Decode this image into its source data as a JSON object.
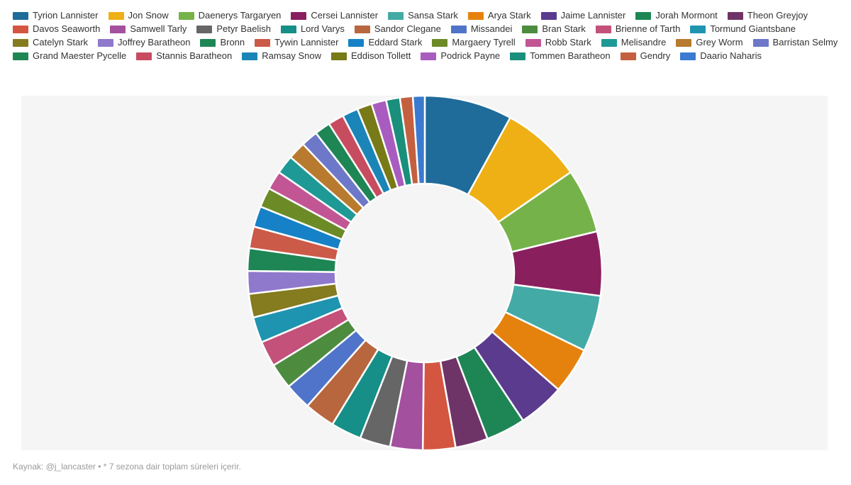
{
  "footnote": "Kaynak: @j_lancaster • * 7 sezona dair toplam süreleri içerir.",
  "chart_data": {
    "type": "pie",
    "donut": true,
    "legend_position": "top",
    "categories": [
      "Tyrion Lannister",
      "Jon Snow",
      "Daenerys Targaryen",
      "Cersei Lannister",
      "Sansa Stark",
      "Arya Stark",
      "Jaime Lannister",
      "Jorah Mormont",
      "Theon Greyjoy",
      "Davos Seaworth",
      "Samwell Tarly",
      "Petyr Baelish",
      "Lord Varys",
      "Sandor Clegane",
      "Missandei",
      "Bran Stark",
      "Brienne of Tarth",
      "Tormund Giantsbane",
      "Catelyn Stark",
      "Joffrey Baratheon",
      "Bronn",
      "Tywin Lannister",
      "Eddard Stark",
      "Margaery Tyrell",
      "Robb Stark",
      "Melisandre",
      "Grey Worm",
      "Barristan Selmy",
      "Grand Maester Pycelle",
      "Stannis Baratheon",
      "Ramsay Snow",
      "Eddison Tollett",
      "Podrick Payne",
      "Tommen Baratheon",
      "Gendry",
      "Daario Naharis"
    ],
    "values": [
      8.9,
      8.2,
      6.5,
      6.5,
      5.7,
      4.7,
      4.7,
      4.0,
      3.3,
      3.3,
      3.3,
      3.1,
      3.1,
      3.1,
      2.7,
      2.6,
      2.6,
      2.6,
      2.4,
      2.3,
      2.3,
      2.2,
      2.1,
      2.0,
      1.9,
      1.9,
      1.8,
      1.7,
      1.6,
      1.6,
      1.6,
      1.5,
      1.5,
      1.4,
      1.3,
      1.2
    ],
    "colors": [
      "#1f6b9a",
      "#eeb015",
      "#76b24a",
      "#8a1f5e",
      "#44aaa6",
      "#e5820e",
      "#5b3b8d",
      "#1e8654",
      "#6e3467",
      "#d45640",
      "#a3509f",
      "#666666",
      "#158f87",
      "#b8663e",
      "#4f74c9",
      "#4d8c3f",
      "#c4517a",
      "#1f94b0",
      "#857b1f",
      "#8f79cc",
      "#1e8654",
      "#cc5a48",
      "#1681c6",
      "#6c8b27",
      "#c25694",
      "#1f9996",
      "#b87a2e",
      "#6e78c9",
      "#1e8654",
      "#c84c60",
      "#1b85b8",
      "#777a17",
      "#a95cbf",
      "#1a8f7b",
      "#c4603f",
      "#3a7ad0"
    ]
  }
}
